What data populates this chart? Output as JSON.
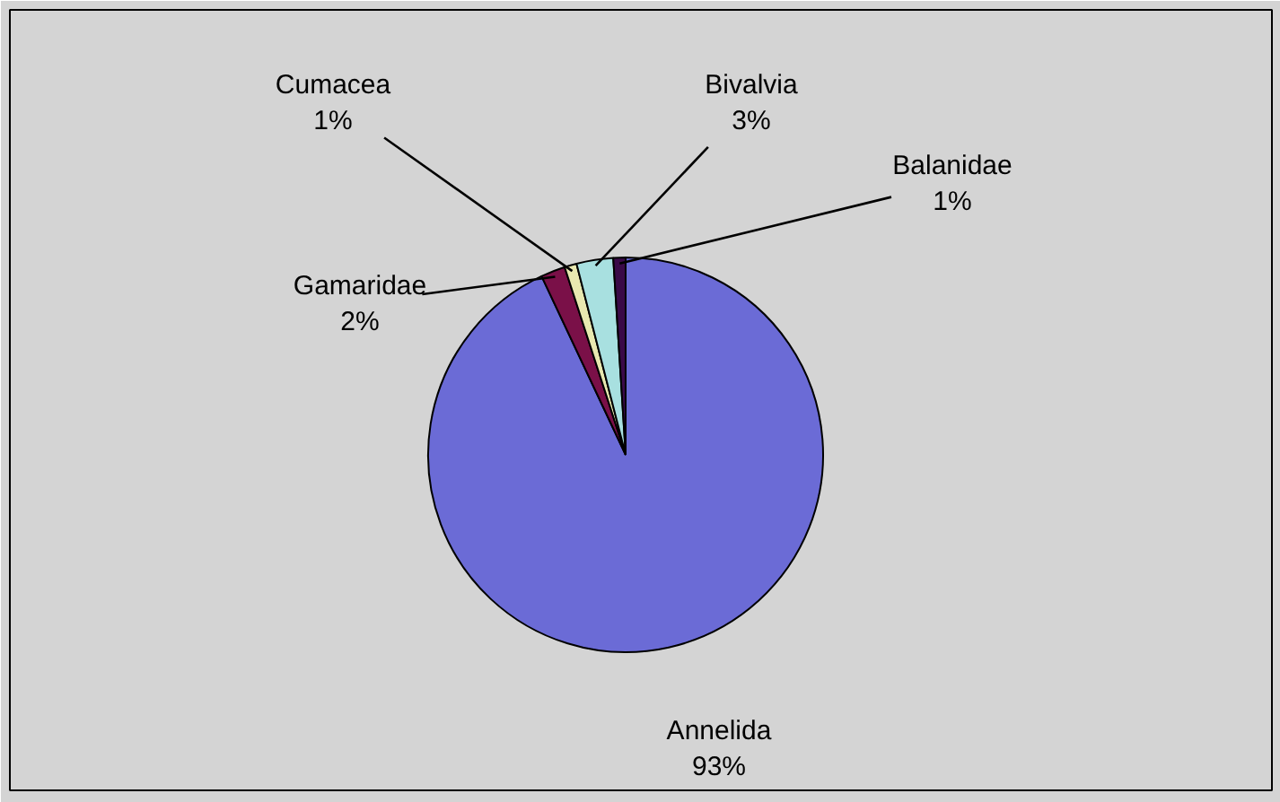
{
  "chart_data": {
    "type": "pie",
    "categories": [
      "Annelida",
      "Gamaridae",
      "Cumacea",
      "Bivalvia",
      "Balanidae"
    ],
    "values": [
      93,
      2,
      1,
      3,
      1
    ],
    "value_labels": [
      "93%",
      "2%",
      "1%",
      "3%",
      "1%"
    ],
    "colors": [
      "#6b6bd6",
      "#7a1048",
      "#e8e8b0",
      "#a8e0e0",
      "#3a0a48"
    ]
  }
}
